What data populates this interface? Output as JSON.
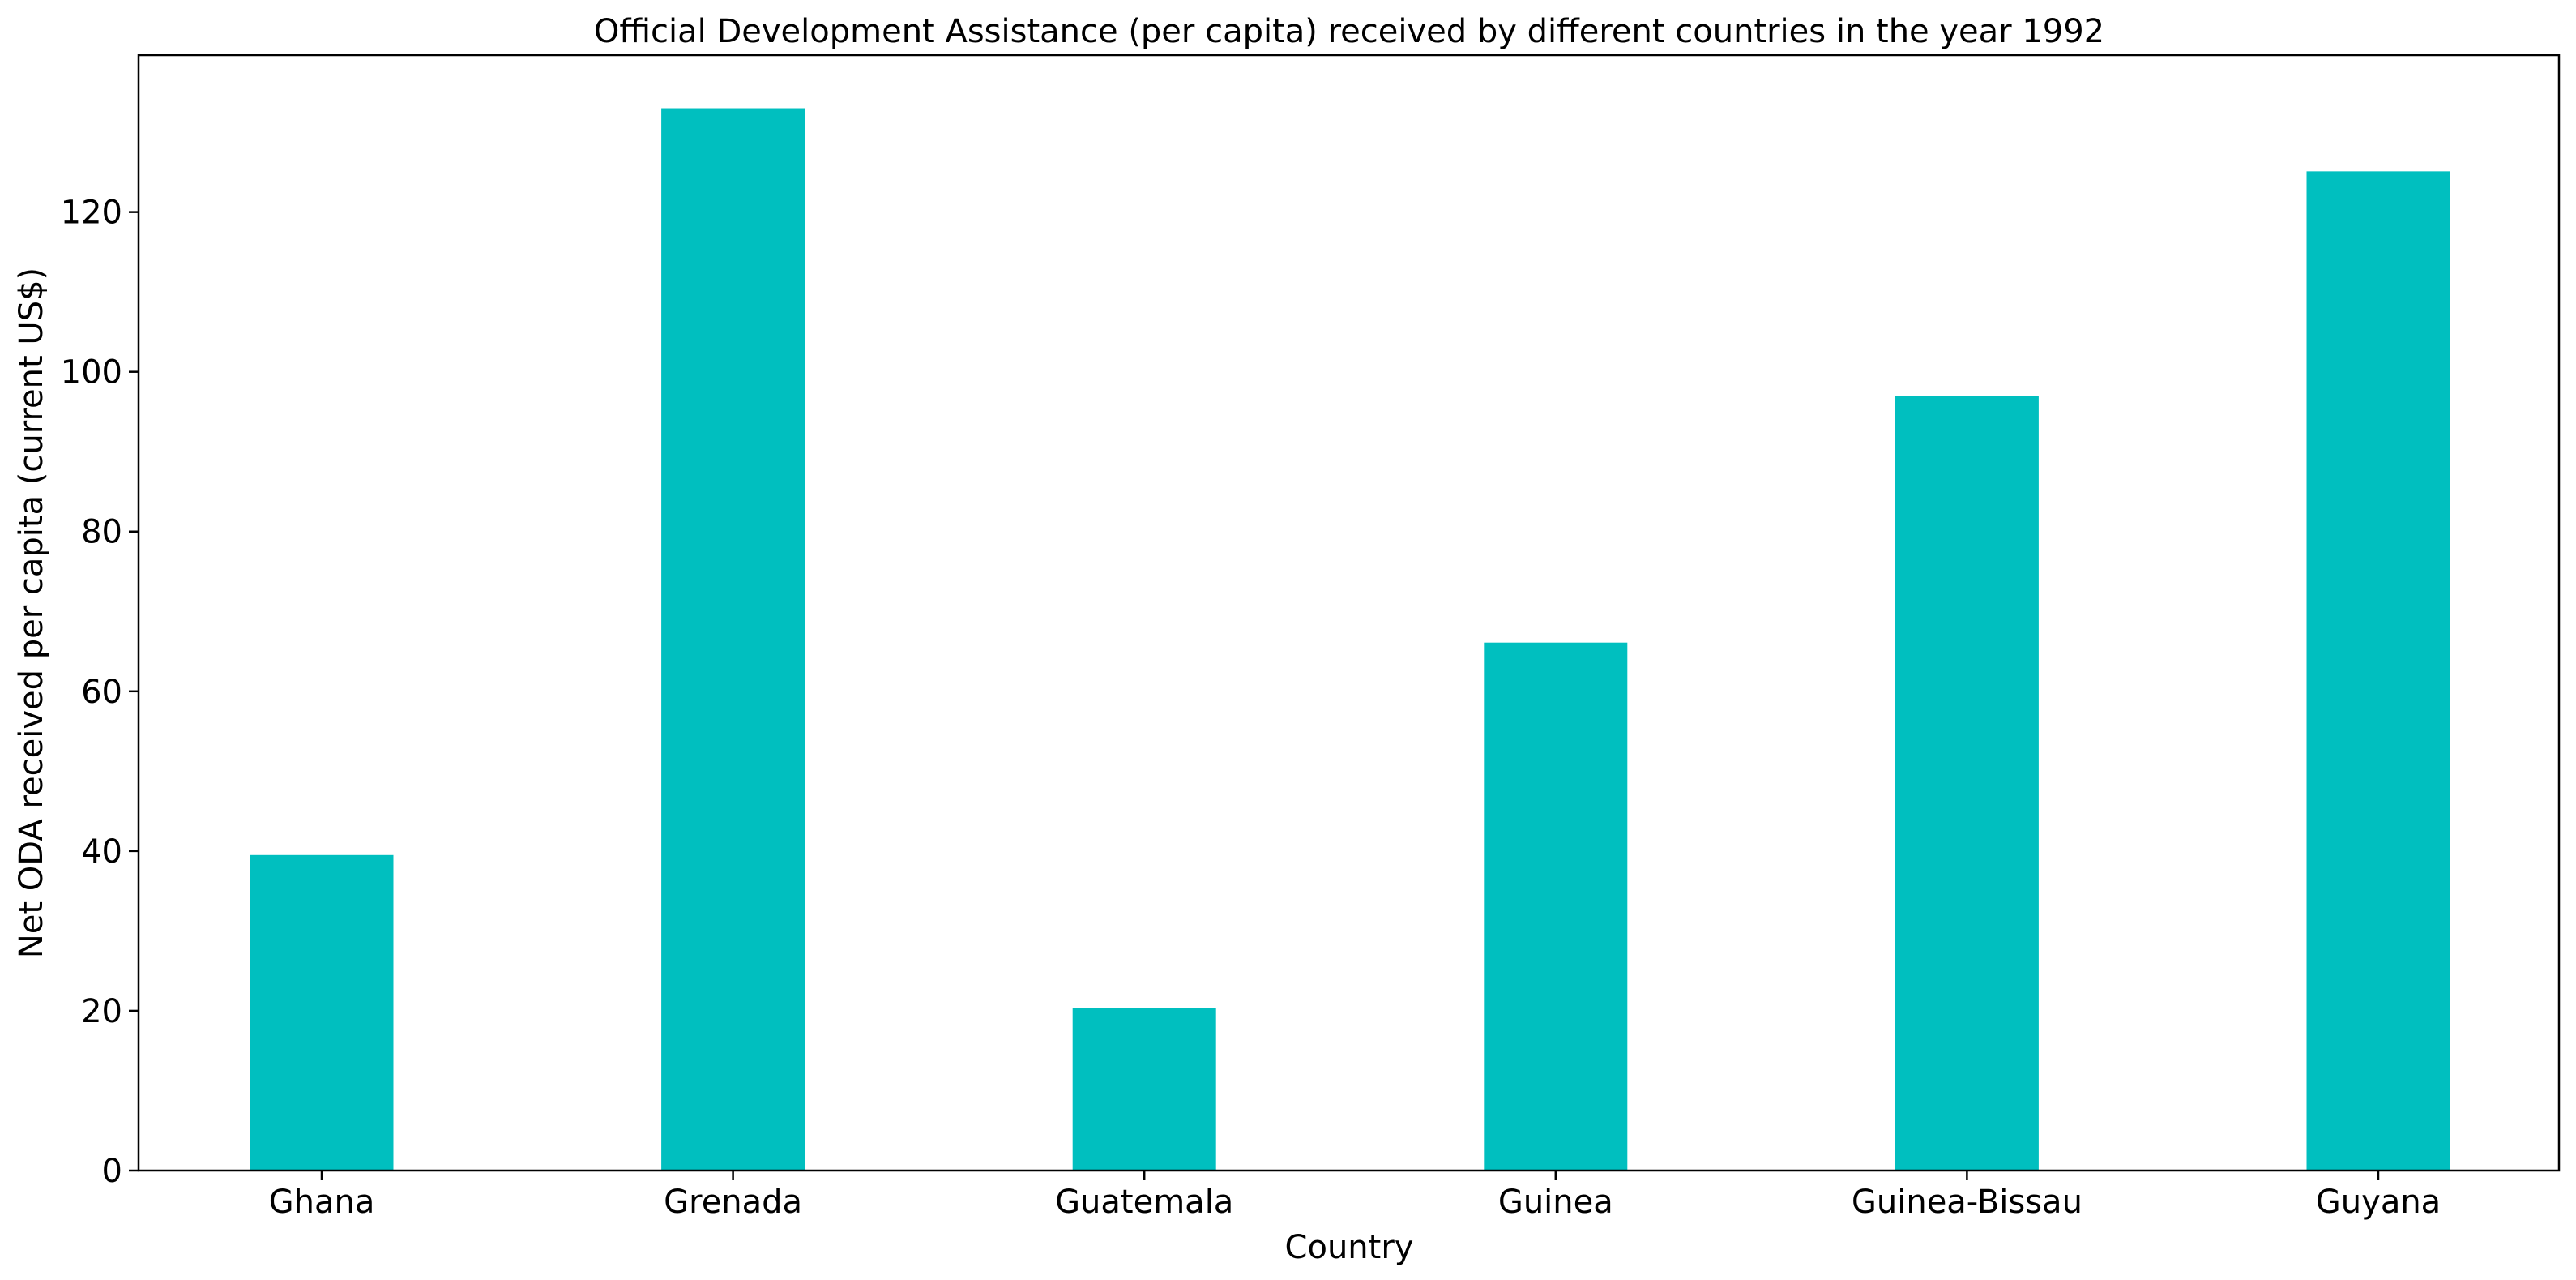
{
  "chart_data": {
    "type": "bar",
    "title": "Official Development Assistance (per capita) received by different countries in the year 1992",
    "xlabel": "Country",
    "ylabel": "Net ODA received per capita (current US$)",
    "categories": [
      "Ghana",
      "Grenada",
      "Guatemala",
      "Guinea",
      "Guinea-Bissau",
      "Guyana"
    ],
    "values": [
      39.5,
      133.0,
      20.3,
      66.1,
      97.0,
      125.1
    ],
    "ylim": [
      0,
      139.65
    ],
    "yticks": [
      0,
      20,
      40,
      60,
      80,
      100,
      120
    ],
    "bar_color": "#00bfbf",
    "grid": false,
    "legend": null
  }
}
